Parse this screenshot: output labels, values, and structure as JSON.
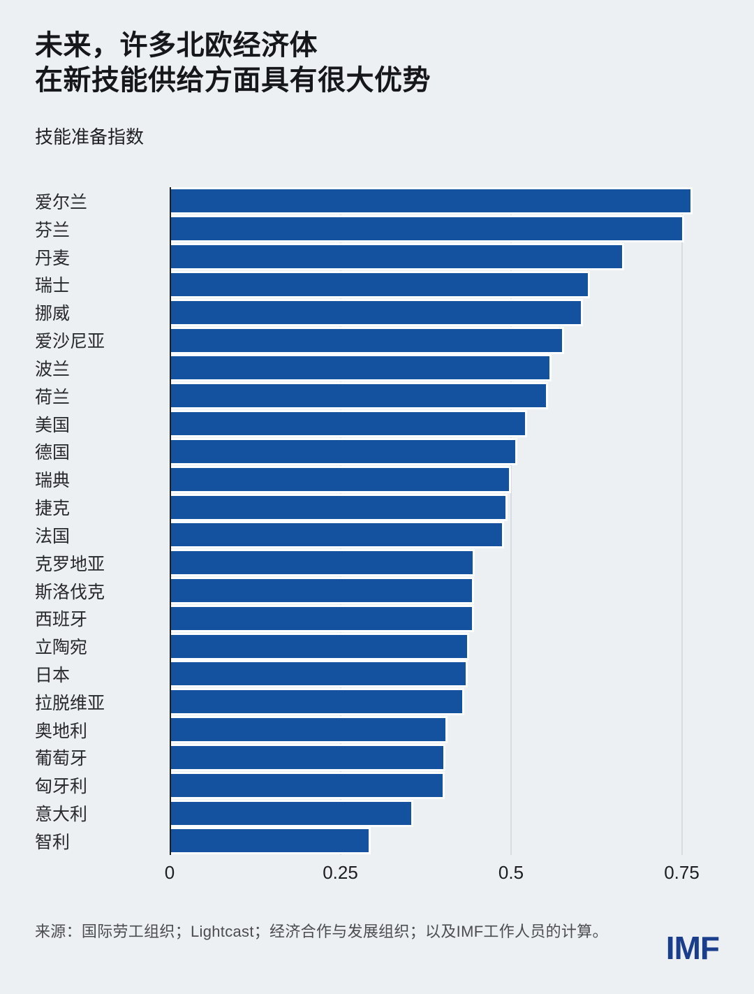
{
  "header": {
    "title_line1": "未来，许多北欧经济体",
    "title_line2": "在新技能供给方面具有很大优势",
    "subtitle": "技能准备指数"
  },
  "footer": {
    "source": "来源：国际劳工组织；Lightcast；经济合作与发展组织；以及IMF工作人员的计算。",
    "logo_text": "IMF"
  },
  "colors": {
    "background": "#EDF0F3",
    "bar": "#14519E",
    "bar_outline": "#FBFDFE",
    "gridline": "#D8DCE0",
    "axis_line": "#202020",
    "logo_blue": "#1A3E8C"
  },
  "chart_data": {
    "type": "bar",
    "orientation": "horizontal",
    "title": "技能准备指数",
    "categories": [
      "爱尔兰",
      "芬兰",
      "丹麦",
      "瑞士",
      "挪威",
      "爱沙尼亚",
      "波兰",
      "荷兰",
      "美国",
      "德国",
      "瑞典",
      "捷克",
      "法国",
      "克罗地亚",
      "斯洛伐克",
      "西班牙",
      "立陶宛",
      "日本",
      "拉脱维亚",
      "奥地利",
      "葡萄牙",
      "匈牙利",
      "意大利",
      "智利"
    ],
    "values": [
      0.763,
      0.751,
      0.663,
      0.612,
      0.602,
      0.575,
      0.556,
      0.551,
      0.52,
      0.506,
      0.497,
      0.492,
      0.487,
      0.444,
      0.443,
      0.443,
      0.436,
      0.434,
      0.428,
      0.404,
      0.401,
      0.4,
      0.354,
      0.291
    ],
    "xlabel": "",
    "ylabel": "",
    "xlim": [
      0,
      0.8
    ],
    "xticks": [
      0,
      0.25,
      0.5,
      0.75
    ],
    "xtick_labels": [
      "0",
      "0.25",
      "0.5",
      "0.75"
    ],
    "grid": "vertical-gridlines-at-ticks",
    "legend": "none"
  }
}
